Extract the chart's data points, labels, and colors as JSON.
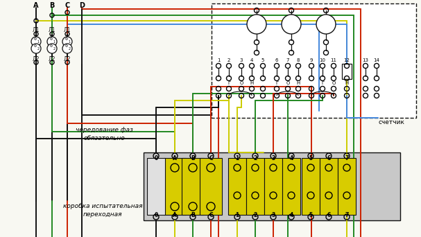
{
  "bg": "#f8f8f2",
  "BK": "#111111",
  "RD": "#cc2200",
  "GR": "#228822",
  "YL": "#cccc00",
  "BL": "#4488dd",
  "lw": 1.4,
  "fig_w": 6.07,
  "fig_h": 3.42,
  "dpi": 100,
  "text_chered": "чередование фаз",
  "text_obyz": "обязательно",
  "text_korob1": "коробка испытательная",
  "text_korob2": "переходная",
  "text_schet": "счетчик"
}
